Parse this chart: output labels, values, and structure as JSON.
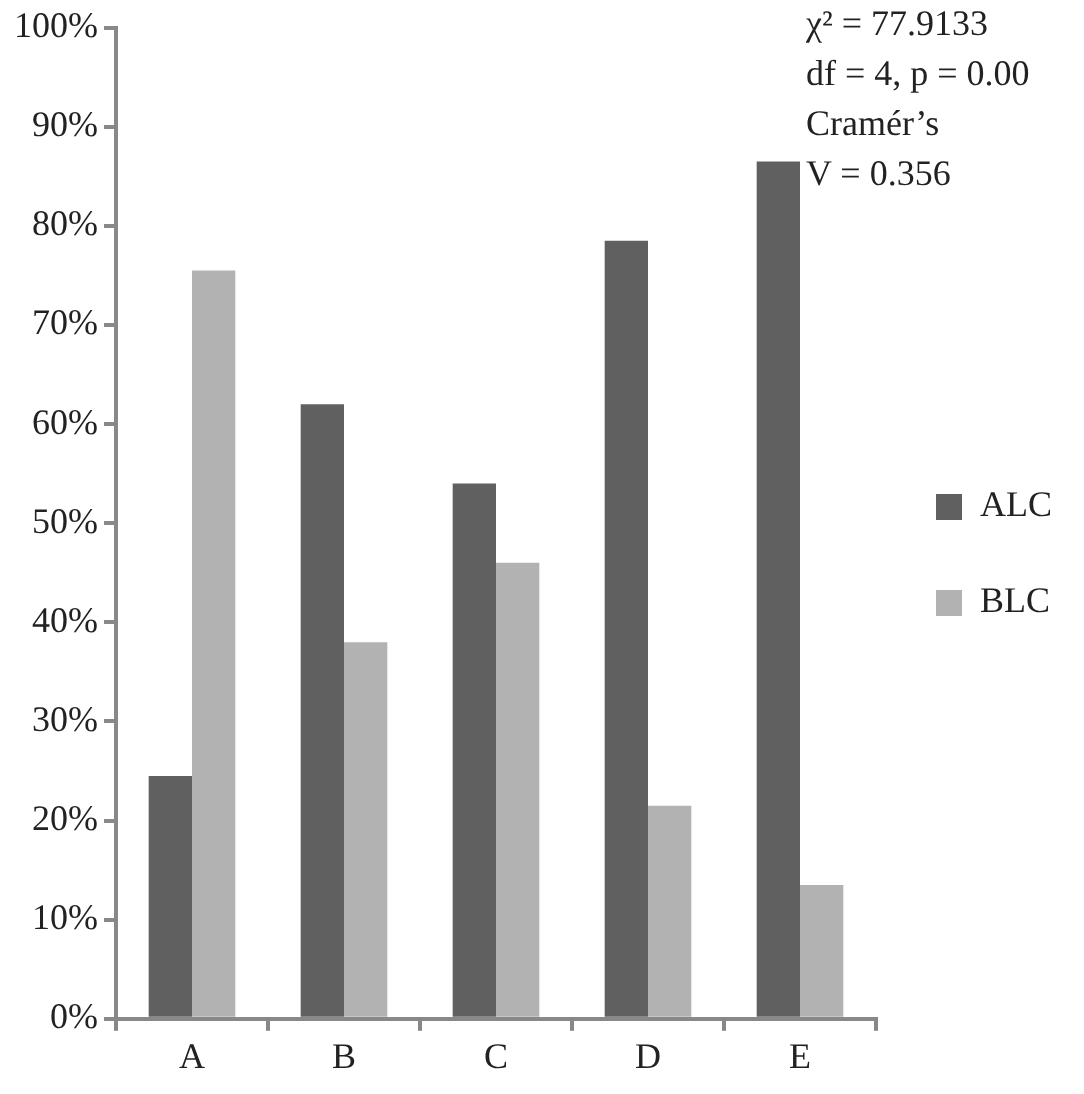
{
  "chart_data": {
    "type": "bar",
    "categories": [
      "A",
      "B",
      "C",
      "D",
      "E"
    ],
    "series": [
      {
        "name": "ALC",
        "color": "#606060",
        "values": [
          24.5,
          62,
          54,
          78.5,
          86.5
        ]
      },
      {
        "name": "BLC",
        "color": "#b2b2b2",
        "values": [
          75.5,
          38,
          46,
          21.5,
          13.5
        ]
      }
    ],
    "ylim": [
      0,
      100
    ],
    "yticks": [
      {
        "value": 0,
        "label": "0%"
      },
      {
        "value": 10,
        "label": "10%"
      },
      {
        "value": 20,
        "label": "20%"
      },
      {
        "value": 30,
        "label": "30%"
      },
      {
        "value": 40,
        "label": "40%"
      },
      {
        "value": 50,
        "label": "50%"
      },
      {
        "value": 60,
        "label": "60%"
      },
      {
        "value": 70,
        "label": "70%"
      },
      {
        "value": 80,
        "label": "80%"
      },
      {
        "value": 90,
        "label": "90%"
      },
      {
        "value": 100,
        "label": "100%"
      }
    ],
    "grid": false,
    "legend": "right",
    "annotations": [
      "χ² = 77.9133",
      "df = 4, p = 0.00",
      "Cramér’s",
      "V = 0.356"
    ]
  }
}
